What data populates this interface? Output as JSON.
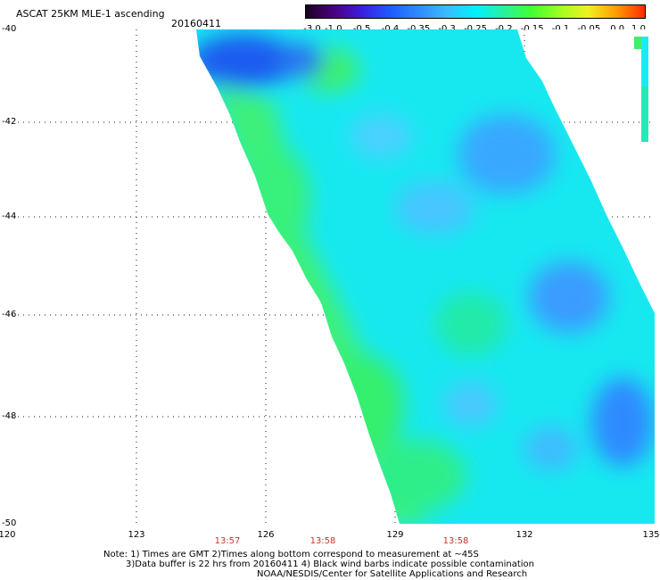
{
  "header": {
    "title": "ASCAT 25KM MLE-1 ascending",
    "date": "20160411"
  },
  "colorbar": {
    "labels": [
      "-3.0",
      "-1.0",
      "-0.5",
      "-0.4",
      "-0.35",
      "-0.3",
      "-0.25",
      "-0.2",
      "-0.15",
      "-0.1",
      "-0.05",
      "0.0",
      "1.0"
    ],
    "colors": [
      "#1a0020",
      "#4b0082",
      "#3a20e0",
      "#1e5cff",
      "#2f8bff",
      "#3bbcff",
      "#00f0ff",
      "#28f0a0",
      "#40ff30",
      "#a0ff20",
      "#f0f020",
      "#ff9a00",
      "#ff2a00"
    ]
  },
  "axes": {
    "lat_labels": [
      "-40",
      "-42",
      "-44",
      "-46",
      "-48",
      "-50"
    ],
    "lon_labels": [
      "120",
      "123",
      "126",
      "129",
      "132",
      "135"
    ]
  },
  "times": [
    "13:57",
    "13:58",
    "13:58"
  ],
  "notes": {
    "line1": "Note: 1) Times are GMT 2)Times along bottom correspond to measurement at ~45S",
    "line2": "3)Data buffer is 22 hrs from 20160411 4) Black wind barbs indicate possible contamination",
    "line3": "NOAA/NESDIS/Center for Satellite Applications and Research"
  },
  "swath_colors": {
    "blue": "#1f6cf0",
    "light_blue": "#3fb8ff",
    "cyan": "#19ecf0",
    "green": "#33f27a",
    "bright_green": "#40ff30"
  }
}
